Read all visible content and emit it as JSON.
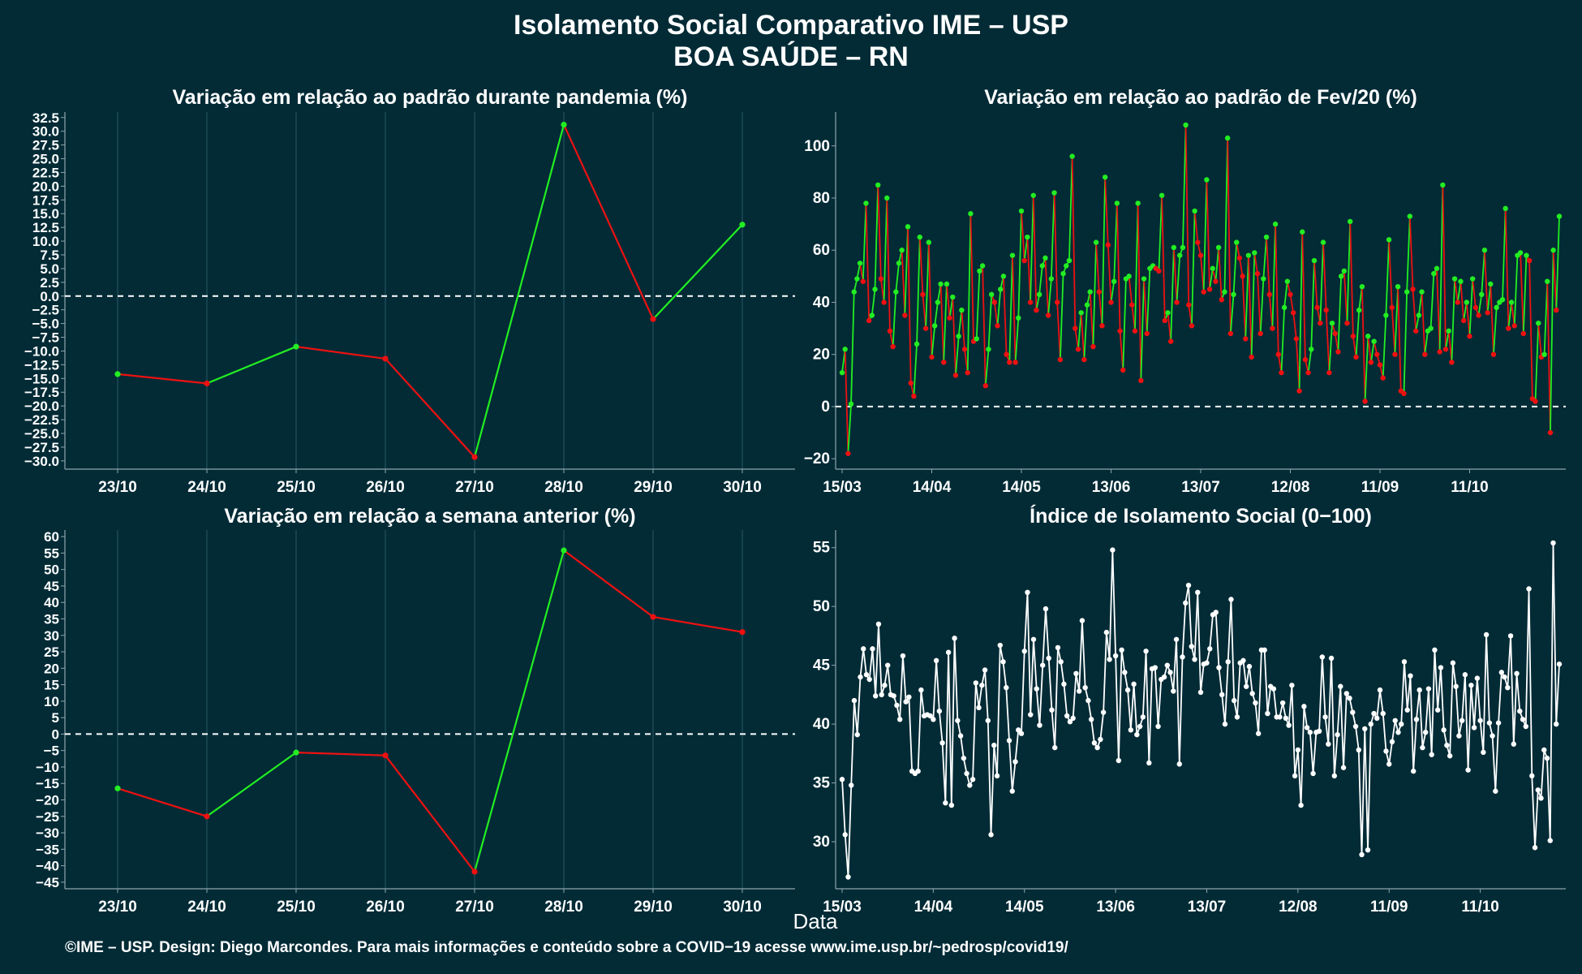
{
  "header": {
    "title_line1": "Isolamento Social Comparativo IME – USP",
    "title_line2": "BOA SAÚDE – RN"
  },
  "x_axis_label": "Data",
  "caption": "©IME – USP. Design: Diego Marcondes. Para mais informações e conteúdo sobre a COVID−19 acesse www.ime.usp.br/~pedrosp/covid19/",
  "colors": {
    "background": "#022b36",
    "up": "#22ee22",
    "down": "#ee1111",
    "index": "#ffffff",
    "grid": "#1d4a55"
  },
  "chart_data": [
    {
      "id": "pandemia",
      "type": "line",
      "title": "Variação em relação ao padrão durante pandemia (%)",
      "categories": [
        "23/10",
        "24/10",
        "25/10",
        "26/10",
        "27/10",
        "28/10",
        "29/10",
        "30/10"
      ],
      "values": [
        -14.2,
        -15.9,
        -9.2,
        -11.4,
        -29.3,
        31.2,
        -4.2,
        13.0
      ],
      "ylim": [
        -31.5,
        33.5
      ],
      "yticks": [
        -30.0,
        -27.5,
        -25.0,
        -22.5,
        -20.0,
        -17.5,
        -15.0,
        -12.5,
        -10.0,
        -7.5,
        -5.0,
        -2.5,
        0.0,
        2.5,
        5.0,
        7.5,
        10.0,
        12.5,
        15.0,
        17.5,
        20.0,
        22.5,
        25.0,
        27.5,
        30.0,
        32.5
      ],
      "ytick_labels": [
        "−30.0",
        "−27.5",
        "−25.0",
        "−22.5",
        "−20.0",
        "−17.5",
        "−15.0",
        "−12.5",
        "−10.0",
        "−7.5",
        "−5.0",
        "−2.5",
        "0.0",
        "2.5",
        "5.0",
        "7.5",
        "10.0",
        "12.5",
        "15.0",
        "17.5",
        "20.0",
        "22.5",
        "25.0",
        "27.5",
        "30.0",
        "32.5"
      ],
      "reference_line": 0,
      "grid": true,
      "colored_by_direction": true
    },
    {
      "id": "fev20",
      "type": "line",
      "title": "Variação em relação ao padrão de Fev/20 (%)",
      "x_start": "15/03",
      "tick_labels": [
        "15/03",
        "14/04",
        "14/05",
        "13/06",
        "13/07",
        "12/08",
        "11/09",
        "11/10"
      ],
      "tick_index": [
        0,
        30,
        60,
        90,
        120,
        150,
        180,
        210
      ],
      "values": [
        13,
        22,
        -18,
        1,
        44,
        49,
        55,
        48,
        78,
        33,
        35,
        45,
        85,
        49,
        40,
        80,
        29,
        23,
        44,
        55,
        60,
        35,
        69,
        9,
        4,
        24,
        65,
        43,
        30,
        63,
        19,
        31,
        40,
        47,
        17,
        47,
        34,
        42,
        12,
        27,
        37,
        22,
        13,
        74,
        25,
        26,
        52,
        54,
        8,
        22,
        43,
        40,
        31,
        45,
        50,
        20,
        17,
        58,
        17,
        34,
        75,
        56,
        65,
        40,
        81,
        37,
        43,
        54,
        57,
        35,
        49,
        82,
        40,
        18,
        51,
        54,
        56,
        96,
        30,
        22,
        36,
        18,
        39,
        44,
        23,
        63,
        44,
        31,
        88,
        62,
        40,
        48,
        78,
        29,
        14,
        49,
        50,
        39,
        29,
        78,
        10,
        49,
        28,
        53,
        54,
        53,
        52,
        81,
        33,
        36,
        25,
        61,
        40,
        58,
        61,
        108,
        39,
        31,
        75,
        63,
        58,
        44,
        87,
        45,
        53,
        48,
        61,
        41,
        44,
        103,
        28,
        43,
        63,
        57,
        50,
        26,
        58,
        19,
        59,
        51,
        28,
        49,
        65,
        43,
        30,
        70,
        20,
        13,
        38,
        48,
        43,
        36,
        26,
        6,
        67,
        18,
        13,
        22,
        56,
        38,
        32,
        63,
        37,
        13,
        32,
        28,
        21,
        50,
        52,
        32,
        71,
        27,
        19,
        37,
        46,
        2,
        27,
        17,
        25,
        20,
        16,
        11,
        35,
        64,
        38,
        20,
        46,
        6,
        5,
        44,
        73,
        45,
        29,
        35,
        44,
        20,
        29,
        30,
        51,
        53,
        21,
        85,
        22,
        29,
        17,
        49,
        40,
        48,
        33,
        40,
        27,
        49,
        38,
        35,
        43,
        60,
        36,
        47,
        20,
        38,
        40,
        41,
        76,
        30,
        40,
        31,
        58,
        59,
        28,
        58,
        56,
        3,
        2,
        32,
        19,
        20,
        48,
        -10,
        60,
        37,
        73
      ],
      "ylim": [
        -24,
        113
      ],
      "yticks": [
        -20,
        0,
        20,
        40,
        60,
        80,
        100
      ],
      "ytick_labels": [
        "−20",
        "0",
        "20",
        "40",
        "60",
        "80",
        "100"
      ],
      "reference_line": 0,
      "grid": false,
      "colored_by_direction": true
    },
    {
      "id": "semana",
      "type": "line",
      "title": "Variação em relação a semana anterior (%)",
      "categories": [
        "23/10",
        "24/10",
        "25/10",
        "26/10",
        "27/10",
        "28/10",
        "29/10",
        "30/10"
      ],
      "values": [
        -16.5,
        -25.0,
        -5.6,
        -6.5,
        -41.8,
        55.8,
        35.6,
        31.0
      ],
      "ylim": [
        -47,
        62
      ],
      "yticks": [
        -45,
        -40,
        -35,
        -30,
        -25,
        -20,
        -15,
        -10,
        -5,
        0,
        5,
        10,
        15,
        20,
        25,
        30,
        35,
        40,
        45,
        50,
        55,
        60
      ],
      "ytick_labels": [
        "−45",
        "−40",
        "−35",
        "−30",
        "−25",
        "−20",
        "−15",
        "−10",
        "−5",
        "0",
        "5",
        "10",
        "15",
        "20",
        "25",
        "30",
        "35",
        "40",
        "45",
        "50",
        "55",
        "60"
      ],
      "reference_line": 0,
      "grid": true,
      "colored_by_direction": true
    },
    {
      "id": "indice",
      "type": "line",
      "title": "Índice de Isolamento Social (0−100)",
      "x_start": "15/03",
      "tick_labels": [
        "15/03",
        "14/04",
        "14/05",
        "13/06",
        "13/07",
        "12/08",
        "11/09",
        "11/10"
      ],
      "tick_index": [
        0,
        30,
        60,
        90,
        120,
        150,
        180,
        210
      ],
      "values": [
        35.3,
        30.6,
        27.0,
        34.8,
        42.0,
        39.1,
        44.0,
        46.4,
        44.2,
        43.8,
        46.4,
        42.4,
        48.5,
        42.5,
        43.3,
        45.0,
        42.5,
        42.4,
        41.6,
        40.4,
        45.8,
        41.9,
        42.3,
        36.0,
        35.8,
        36.0,
        42.9,
        40.7,
        40.8,
        40.7,
        40.4,
        45.4,
        41.1,
        38.4,
        33.3,
        46.1,
        33.1,
        47.3,
        40.3,
        39.0,
        37.1,
        35.8,
        34.8,
        35.3,
        43.5,
        41.4,
        43.3,
        44.6,
        40.3,
        30.6,
        38.2,
        35.6,
        46.7,
        45.3,
        43.1,
        38.6,
        34.3,
        36.8,
        39.5,
        39.2,
        46.2,
        51.2,
        40.8,
        47.2,
        43.0,
        39.9,
        45.0,
        49.8,
        45.6,
        41.2,
        38.0,
        46.5,
        45.3,
        43.4,
        40.7,
        40.2,
        40.5,
        44.3,
        42.8,
        48.8,
        43.1,
        42.0,
        40.4,
        38.4,
        38.0,
        38.7,
        41.0,
        47.8,
        45.5,
        54.8,
        45.8,
        36.9,
        46.3,
        44.4,
        42.9,
        39.5,
        43.4,
        39.1,
        39.8,
        40.6,
        46.2,
        36.7,
        44.7,
        44.8,
        39.8,
        43.8,
        44.0,
        45.0,
        44.4,
        42.8,
        47.2,
        36.6,
        45.7,
        50.3,
        51.8,
        46.6,
        45.5,
        51.2,
        42.7,
        45.1,
        45.2,
        46.4,
        49.3,
        49.5,
        44.8,
        42.5,
        40.0,
        45.3,
        50.6,
        42.0,
        40.6,
        45.2,
        45.4,
        43.2,
        44.9,
        42.6,
        41.8,
        39.2,
        46.3,
        46.3,
        40.9,
        43.2,
        43.0,
        40.6,
        40.6,
        41.8,
        40.5,
        39.9,
        43.3,
        35.6,
        37.8,
        33.1,
        41.5,
        39.7,
        39.3,
        35.8,
        39.3,
        39.4,
        45.7,
        40.6,
        38.3,
        45.6,
        35.6,
        39.1,
        43.2,
        36.3,
        42.6,
        42.2,
        41.0,
        39.8,
        37.8,
        28.9,
        39.6,
        29.3,
        40.0,
        40.9,
        40.5,
        42.9,
        40.9,
        37.7,
        36.6,
        38.5,
        40.3,
        39.3,
        40.0,
        45.3,
        41.2,
        44.1,
        36.0,
        40.4,
        42.9,
        38.0,
        39.3,
        43.0,
        37.4,
        46.3,
        41.2,
        44.8,
        39.5,
        38.2,
        37.3,
        45.2,
        43.2,
        39.0,
        40.3,
        44.2,
        36.1,
        43.3,
        39.7,
        43.9,
        40.3,
        37.6,
        47.6,
        40.1,
        39.0,
        34.3,
        40.1,
        44.4,
        44.0,
        43.1,
        47.5,
        38.3,
        44.3,
        41.1,
        40.4,
        39.8,
        51.5,
        35.6,
        29.5,
        34.4,
        33.7,
        37.8,
        37.1,
        30.1,
        55.4,
        40.0,
        45.1
      ],
      "ylim": [
        26,
        56.5
      ],
      "yticks": [
        30,
        35,
        40,
        45,
        50,
        55
      ],
      "ytick_labels": [
        "30",
        "35",
        "40",
        "45",
        "50",
        "55"
      ],
      "grid": false,
      "colored_by_direction": false
    }
  ]
}
